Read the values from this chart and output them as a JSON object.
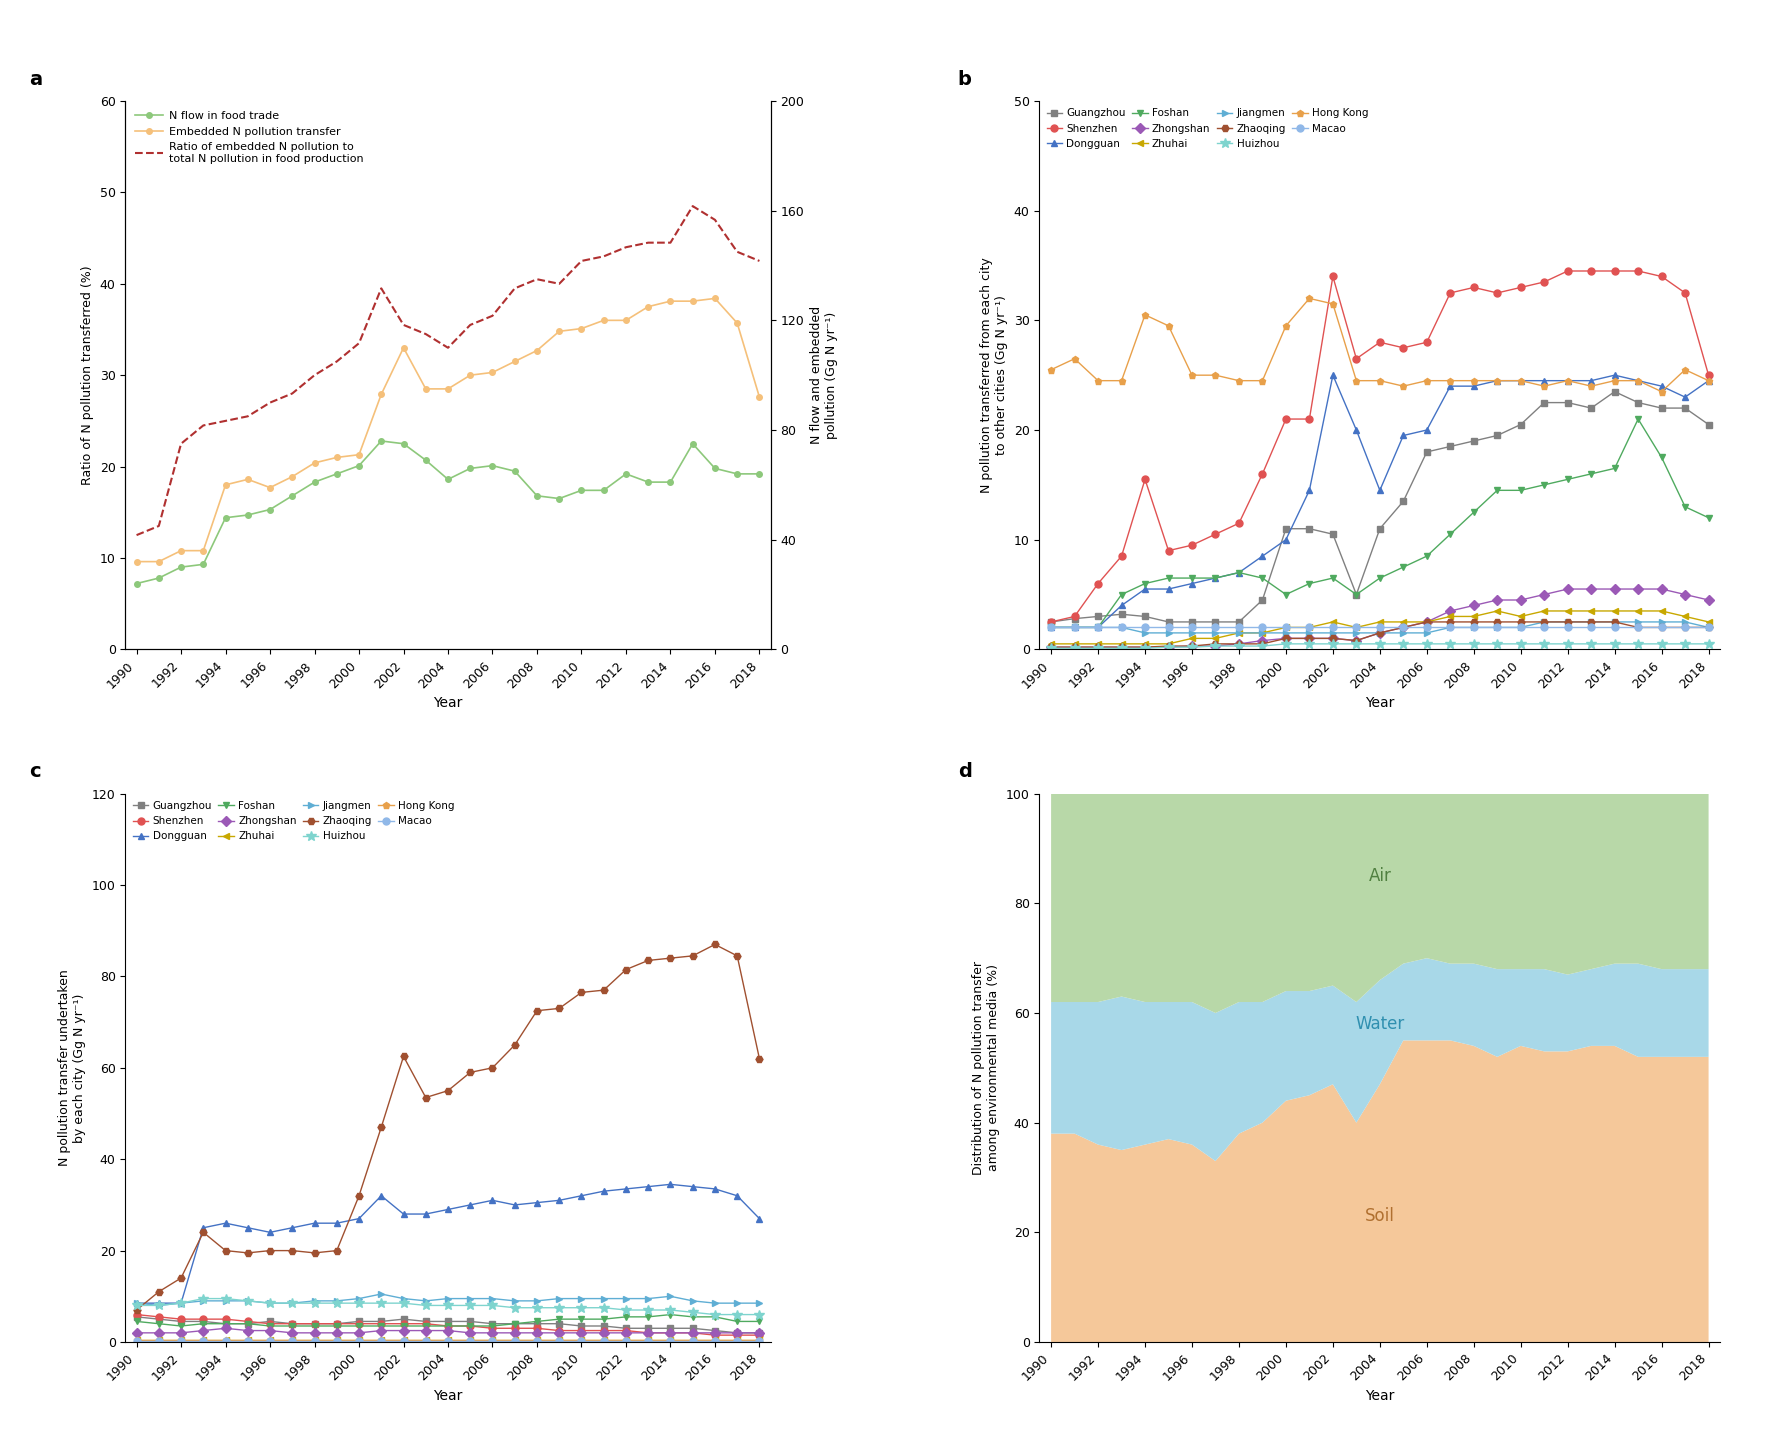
{
  "years": [
    1990,
    1991,
    1992,
    1993,
    1994,
    1995,
    1996,
    1997,
    1998,
    1999,
    2000,
    2001,
    2002,
    2003,
    2004,
    2005,
    2006,
    2007,
    2008,
    2009,
    2010,
    2011,
    2012,
    2013,
    2014,
    2015,
    2016,
    2017,
    2018
  ],
  "panel_a": {
    "n_flow_pct": [
      7.8,
      8.5,
      9.8,
      10.0,
      15.5,
      16.0,
      16.5,
      18.0,
      19.5,
      20.5,
      21.5,
      24.5,
      24.0,
      22.0,
      20.0,
      21.0,
      21.5,
      21.0,
      18.0,
      17.5,
      18.5,
      18.5,
      20.5,
      19.5,
      19.5,
      24.0,
      21.0,
      20.5,
      20.5
    ],
    "embedded_n_gg": [
      32,
      32,
      36,
      36,
      60,
      62,
      59,
      63,
      68,
      70,
      71,
      93,
      110,
      95,
      95,
      100,
      101,
      105,
      109,
      116,
      117,
      120,
      120,
      125,
      127,
      127,
      128,
      119,
      92
    ],
    "n_flow_gg": [
      24,
      26,
      30,
      31,
      48,
      49,
      51,
      56,
      61,
      64,
      67,
      76,
      75,
      69,
      62,
      66,
      67,
      65,
      56,
      55,
      58,
      58,
      64,
      61,
      61,
      75,
      66,
      64,
      64
    ],
    "ratio_pct": [
      12.5,
      13.5,
      22.5,
      24.5,
      25.0,
      25.5,
      27.0,
      28.0,
      30.0,
      31.5,
      33.5,
      39.5,
      35.5,
      34.5,
      33.0,
      35.5,
      36.5,
      39.5,
      40.5,
      40.0,
      42.5,
      43.0,
      44.0,
      44.5,
      44.5,
      48.5,
      47.0,
      43.5,
      42.5
    ],
    "n_flow_color": "#8dc87b",
    "embedded_color": "#f5c07a",
    "ratio_color": "#b03030",
    "ylabel_left": "Ratio of N pollution transferred (%)",
    "ylabel_right": "N flow and embedded\npollution (Gg N yr⁻¹)",
    "ylim_left": [
      0,
      60
    ],
    "ylim_right": [
      0,
      200
    ],
    "yticks_left": [
      0,
      10,
      20,
      30,
      40,
      50,
      60
    ],
    "yticks_right": [
      0,
      40,
      80,
      120,
      160,
      200
    ]
  },
  "panel_b": {
    "cities": [
      "Guangzhou",
      "Shenzhen",
      "Dongguan",
      "Foshan",
      "Zhongshan",
      "Zhuhai",
      "Jiangmen",
      "Zhaoqing",
      "Huizhou",
      "Hong Kong",
      "Macao"
    ],
    "colors": [
      "#808080",
      "#e05252",
      "#4472c4",
      "#4faa5f",
      "#9b59b6",
      "#c8a800",
      "#5faed4",
      "#a05030",
      "#7ed4ce",
      "#e8a04a",
      "#90b8e8"
    ],
    "markers": [
      "s",
      "o",
      "^",
      "v",
      "D",
      "<",
      ">",
      "H",
      "*",
      "p",
      "o"
    ],
    "data": {
      "Guangzhou": [
        2.5,
        2.8,
        3.0,
        3.2,
        3.0,
        2.5,
        2.5,
        2.5,
        2.5,
        4.5,
        11.0,
        11.0,
        10.5,
        5.0,
        11.0,
        13.5,
        18.0,
        18.5,
        19.0,
        19.5,
        20.5,
        22.5,
        22.5,
        22.0,
        23.5,
        22.5,
        22.0,
        22.0,
        20.5
      ],
      "Shenzhen": [
        2.5,
        3.0,
        6.0,
        8.5,
        15.5,
        9.0,
        9.5,
        10.5,
        11.5,
        16.0,
        21.0,
        21.0,
        34.0,
        26.5,
        28.0,
        27.5,
        28.0,
        32.5,
        33.0,
        32.5,
        33.0,
        33.5,
        34.5,
        34.5,
        34.5,
        34.5,
        34.0,
        32.5,
        25.0
      ],
      "Dongguan": [
        2.0,
        2.0,
        2.0,
        4.0,
        5.5,
        5.5,
        6.0,
        6.5,
        7.0,
        8.5,
        10.0,
        14.5,
        25.0,
        20.0,
        14.5,
        19.5,
        20.0,
        24.0,
        24.0,
        24.5,
        24.5,
        24.5,
        24.5,
        24.5,
        25.0,
        24.5,
        24.0,
        23.0,
        24.5
      ],
      "Foshan": [
        2.0,
        2.0,
        2.0,
        5.0,
        6.0,
        6.5,
        6.5,
        6.5,
        7.0,
        6.5,
        5.0,
        6.0,
        6.5,
        5.0,
        6.5,
        7.5,
        8.5,
        10.5,
        12.5,
        14.5,
        14.5,
        15.0,
        15.5,
        16.0,
        16.5,
        21.0,
        17.5,
        13.0,
        12.0
      ],
      "Zhongshan": [
        0.2,
        0.2,
        0.2,
        0.2,
        0.2,
        0.2,
        0.3,
        0.3,
        0.5,
        0.8,
        1.0,
        1.0,
        1.0,
        0.8,
        1.5,
        2.0,
        2.5,
        3.5,
        4.0,
        4.5,
        4.5,
        5.0,
        5.5,
        5.5,
        5.5,
        5.5,
        5.5,
        5.0,
        4.5
      ],
      "Zhuhai": [
        0.5,
        0.5,
        0.5,
        0.5,
        0.5,
        0.5,
        1.0,
        1.0,
        1.5,
        1.5,
        2.0,
        2.0,
        2.5,
        2.0,
        2.5,
        2.5,
        2.5,
        3.0,
        3.0,
        3.5,
        3.0,
        3.5,
        3.5,
        3.5,
        3.5,
        3.5,
        3.5,
        3.0,
        2.5
      ],
      "Jiangmen": [
        2.0,
        2.0,
        2.0,
        2.0,
        1.5,
        1.5,
        1.5,
        1.5,
        1.5,
        1.5,
        1.5,
        1.5,
        1.5,
        1.5,
        1.5,
        1.5,
        1.5,
        2.0,
        2.0,
        2.0,
        2.0,
        2.5,
        2.5,
        2.5,
        2.5,
        2.5,
        2.5,
        2.5,
        2.0
      ],
      "Zhaoqing": [
        0.2,
        0.2,
        0.2,
        0.2,
        0.2,
        0.3,
        0.3,
        0.5,
        0.5,
        0.5,
        1.0,
        1.0,
        1.0,
        0.8,
        1.5,
        2.0,
        2.5,
        2.5,
        2.5,
        2.5,
        2.5,
        2.5,
        2.5,
        2.5,
        2.5,
        2.0,
        2.0,
        2.0,
        2.0
      ],
      "Huizhou": [
        0.1,
        0.1,
        0.1,
        0.1,
        0.1,
        0.2,
        0.2,
        0.3,
        0.3,
        0.3,
        0.5,
        0.5,
        0.5,
        0.5,
        0.5,
        0.5,
        0.5,
        0.5,
        0.5,
        0.5,
        0.5,
        0.5,
        0.5,
        0.5,
        0.5,
        0.5,
        0.5,
        0.5,
        0.5
      ],
      "Hong Kong": [
        25.5,
        26.5,
        24.5,
        24.5,
        30.5,
        29.5,
        25.0,
        25.0,
        24.5,
        24.5,
        29.5,
        32.0,
        31.5,
        24.5,
        24.5,
        24.0,
        24.5,
        24.5,
        24.5,
        24.5,
        24.5,
        24.0,
        24.5,
        24.0,
        24.5,
        24.5,
        23.5,
        25.5,
        24.5
      ],
      "Macao": [
        2.0,
        2.0,
        2.0,
        2.0,
        2.0,
        2.0,
        2.0,
        2.0,
        2.0,
        2.0,
        2.0,
        2.0,
        2.0,
        2.0,
        2.0,
        2.0,
        2.0,
        2.0,
        2.0,
        2.0,
        2.0,
        2.0,
        2.0,
        2.0,
        2.0,
        2.0,
        2.0,
        2.0,
        2.0
      ]
    },
    "ylabel": "N pollution transferred from each city\nto other cities (Gg N yr⁻¹)",
    "ylim": [
      0,
      50
    ],
    "yticks": [
      0,
      10,
      20,
      30,
      40,
      50
    ]
  },
  "panel_c": {
    "cities": [
      "Guangzhou",
      "Shenzhen",
      "Dongguan",
      "Foshan",
      "Zhongshan",
      "Zhuhai",
      "Jiangmen",
      "Zhaoqing",
      "Huizhou",
      "Hong Kong",
      "Macao"
    ],
    "colors": [
      "#808080",
      "#e05252",
      "#4472c4",
      "#4faa5f",
      "#9b59b6",
      "#c8a800",
      "#5faed4",
      "#a05030",
      "#7ed4ce",
      "#e8a04a",
      "#90b8e8"
    ],
    "markers": [
      "s",
      "o",
      "^",
      "v",
      "D",
      "<",
      ">",
      "H",
      "*",
      "p",
      "o"
    ],
    "data": {
      "Guangzhou": [
        5.5,
        5.0,
        4.5,
        4.5,
        4.0,
        4.0,
        4.5,
        4.0,
        4.0,
        4.0,
        4.5,
        4.5,
        5.0,
        4.5,
        4.5,
        4.5,
        4.0,
        4.0,
        4.0,
        4.0,
        3.5,
        3.5,
        3.0,
        3.0,
        3.0,
        3.0,
        2.5,
        2.0,
        2.0
      ],
      "Shenzhen": [
        6.0,
        5.5,
        5.0,
        5.0,
        5.0,
        4.5,
        4.0,
        4.0,
        4.0,
        4.0,
        4.0,
        4.0,
        4.0,
        4.0,
        3.5,
        3.5,
        3.0,
        3.0,
        3.0,
        2.5,
        2.5,
        2.5,
        2.5,
        2.0,
        2.0,
        2.0,
        1.5,
        1.5,
        1.5
      ],
      "Dongguan": [
        8.5,
        8.5,
        8.5,
        25.0,
        26.0,
        25.0,
        24.0,
        25.0,
        26.0,
        26.0,
        27.0,
        32.0,
        28.0,
        28.0,
        29.0,
        30.0,
        31.0,
        30.0,
        30.5,
        31.0,
        32.0,
        33.0,
        33.5,
        34.0,
        34.5,
        34.0,
        33.5,
        32.0,
        27.0
      ],
      "Foshan": [
        4.5,
        4.0,
        3.5,
        4.0,
        4.0,
        4.0,
        3.5,
        3.5,
        3.5,
        3.5,
        3.5,
        3.5,
        3.5,
        3.5,
        3.5,
        3.5,
        3.5,
        4.0,
        4.5,
        5.0,
        5.0,
        5.0,
        5.5,
        5.5,
        6.0,
        5.5,
        5.5,
        4.5,
        4.5
      ],
      "Zhongshan": [
        2.0,
        2.0,
        2.0,
        2.5,
        3.0,
        2.5,
        2.5,
        2.0,
        2.0,
        2.0,
        2.0,
        2.5,
        2.5,
        2.5,
        2.5,
        2.0,
        2.0,
        2.0,
        2.0,
        2.0,
        2.0,
        2.0,
        2.0,
        2.0,
        2.0,
        2.0,
        2.0,
        2.0,
        2.0
      ],
      "Zhuhai": [
        0.5,
        0.5,
        0.5,
        0.5,
        0.5,
        0.5,
        0.5,
        0.5,
        0.5,
        0.5,
        0.5,
        0.5,
        0.5,
        0.5,
        0.5,
        0.5,
        0.5,
        0.5,
        0.5,
        0.5,
        0.5,
        0.5,
        0.5,
        0.5,
        0.5,
        0.5,
        0.5,
        0.5,
        0.5
      ],
      "Jiangmen": [
        8.5,
        8.0,
        8.5,
        9.0,
        9.0,
        9.0,
        8.5,
        8.5,
        9.0,
        9.0,
        9.5,
        10.5,
        9.5,
        9.0,
        9.5,
        9.5,
        9.5,
        9.0,
        9.0,
        9.5,
        9.5,
        9.5,
        9.5,
        9.5,
        10.0,
        9.0,
        8.5,
        8.5,
        8.5
      ],
      "Zhaoqing": [
        7.0,
        11.0,
        14.0,
        24.0,
        20.0,
        19.5,
        20.0,
        20.0,
        19.5,
        20.0,
        32.0,
        47.0,
        62.5,
        53.5,
        55.0,
        59.0,
        60.0,
        65.0,
        72.5,
        73.0,
        76.5,
        77.0,
        81.5,
        83.5,
        84.0,
        84.5,
        87.0,
        84.5,
        62.0
      ],
      "Huizhou": [
        8.0,
        8.0,
        8.5,
        9.5,
        9.5,
        9.0,
        8.5,
        8.5,
        8.5,
        8.5,
        8.5,
        8.5,
        8.5,
        8.0,
        8.0,
        8.0,
        8.0,
        7.5,
        7.5,
        7.5,
        7.5,
        7.5,
        7.0,
        7.0,
        7.0,
        6.5,
        6.0,
        6.0,
        6.0
      ],
      "Hong Kong": [
        0.5,
        0.5,
        0.5,
        0.5,
        0.5,
        0.5,
        0.5,
        0.5,
        0.5,
        0.5,
        0.5,
        0.5,
        0.5,
        0.5,
        0.5,
        0.5,
        0.5,
        0.5,
        0.5,
        0.5,
        0.5,
        0.5,
        0.5,
        0.5,
        0.5,
        0.5,
        0.5,
        0.5,
        0.5
      ],
      "Macao": [
        0.2,
        0.2,
        0.2,
        0.2,
        0.2,
        0.2,
        0.2,
        0.2,
        0.2,
        0.2,
        0.2,
        0.2,
        0.2,
        0.2,
        0.2,
        0.2,
        0.2,
        0.2,
        0.2,
        0.2,
        0.2,
        0.2,
        0.2,
        0.2,
        0.2,
        0.2,
        0.2,
        0.2,
        0.2
      ]
    },
    "ylabel": "N pollution transfer undertaken\nby each city (Gg N yr⁻¹)",
    "ylim": [
      0,
      120
    ],
    "yticks": [
      0,
      20,
      40,
      60,
      80,
      100,
      120
    ]
  },
  "panel_d": {
    "soil": [
      38,
      38,
      36,
      35,
      36,
      37,
      36,
      33,
      38,
      40,
      44,
      45,
      47,
      40,
      47,
      55,
      55,
      55,
      54,
      52,
      54,
      53,
      53,
      54,
      54,
      52,
      52,
      52,
      52
    ],
    "water": [
      24,
      24,
      26,
      28,
      26,
      25,
      26,
      27,
      24,
      22,
      20,
      19,
      18,
      22,
      19,
      14,
      15,
      14,
      15,
      16,
      14,
      15,
      14,
      14,
      15,
      17,
      16,
      16,
      16
    ],
    "air": [
      38,
      38,
      38,
      37,
      38,
      38,
      38,
      40,
      38,
      38,
      36,
      36,
      35,
      38,
      34,
      31,
      30,
      31,
      31,
      32,
      32,
      32,
      33,
      32,
      31,
      31,
      32,
      32,
      32
    ],
    "soil_color": "#f5c89a",
    "water_color": "#a8d8e8",
    "air_color": "#b8d8a8",
    "ylabel": "Distribution of N pollution transfer\namong environmental media (%)",
    "ylim": [
      0,
      100
    ],
    "yticks": [
      0,
      20,
      40,
      60,
      80,
      100
    ]
  },
  "years_xticks": [
    1990,
    1992,
    1994,
    1996,
    1998,
    2000,
    2002,
    2004,
    2006,
    2008,
    2010,
    2012,
    2014,
    2016,
    2018
  ]
}
